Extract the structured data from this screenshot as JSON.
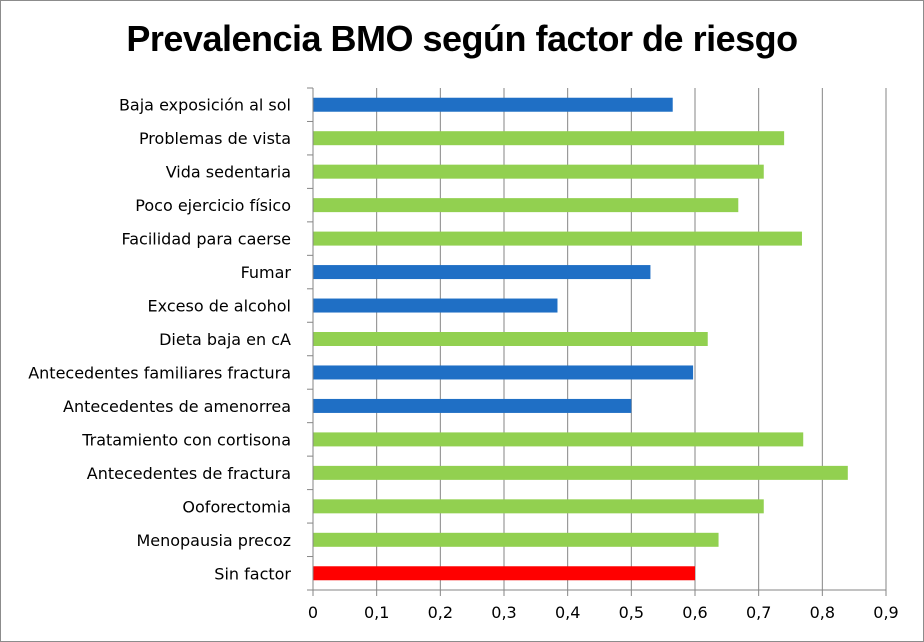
{
  "chart_data": {
    "type": "bar",
    "orientation": "horizontal",
    "title": "Prevalencia BMO según factor de riesgo",
    "xlabel": "",
    "ylabel": "",
    "xlim": [
      0,
      0.9
    ],
    "ticks": [
      "0",
      "0,1",
      "0,2",
      "0,3",
      "0,4",
      "0,5",
      "0,6",
      "0,7",
      "0,8",
      "0,9"
    ],
    "grid": true,
    "legend": "none",
    "colors": {
      "blue": "#1f6fc5",
      "green": "#92d050",
      "red": "#ff0000"
    },
    "bars": [
      {
        "category": "Baja exposición al sol",
        "value": 0.565,
        "color": "blue"
      },
      {
        "category": "Problemas de vista",
        "value": 0.74,
        "color": "green"
      },
      {
        "category": "Vida sedentaria",
        "value": 0.708,
        "color": "green"
      },
      {
        "category": "Poco ejercicio físico",
        "value": 0.668,
        "color": "green"
      },
      {
        "category": "Facilidad para  caerse",
        "value": 0.768,
        "color": "green"
      },
      {
        "category": "Fumar",
        "value": 0.53,
        "color": "blue"
      },
      {
        "category": "Exceso de alcohol",
        "value": 0.384,
        "color": "blue"
      },
      {
        "category": "Dieta baja en cA",
        "value": 0.62,
        "color": "green"
      },
      {
        "category": "Antecedentes familiares fractura",
        "value": 0.597,
        "color": "blue"
      },
      {
        "category": "Antecedentes de amenorrea",
        "value": 0.5,
        "color": "blue"
      },
      {
        "category": "Tratamiento con cortisona",
        "value": 0.77,
        "color": "green"
      },
      {
        "category": "Antecedentes de fractura",
        "value": 0.84,
        "color": "green"
      },
      {
        "category": "Ooforectomia",
        "value": 0.708,
        "color": "green"
      },
      {
        "category": "Menopausia precoz",
        "value": 0.637,
        "color": "green"
      },
      {
        "category": "Sin factor",
        "value": 0.6,
        "color": "red"
      }
    ]
  }
}
